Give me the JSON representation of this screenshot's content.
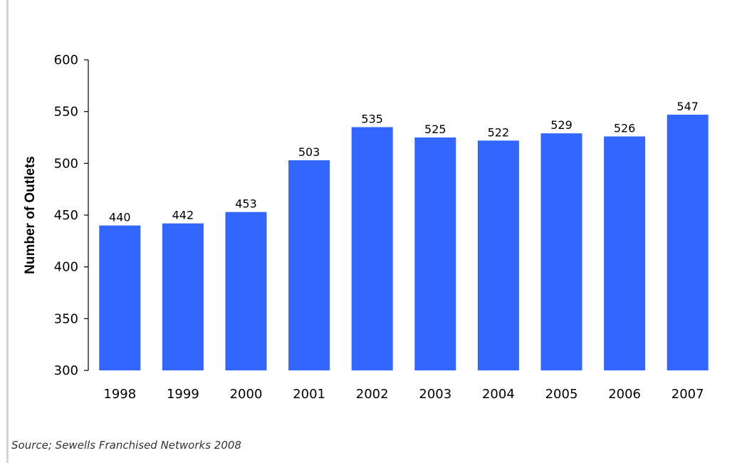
{
  "chart_data": {
    "type": "bar",
    "title": "",
    "xlabel": "",
    "ylabel": "Number of Outlets",
    "categories": [
      "1998",
      "1999",
      "2000",
      "2001",
      "2002",
      "2003",
      "2004",
      "2005",
      "2006",
      "2007"
    ],
    "values": [
      440,
      442,
      453,
      503,
      535,
      525,
      522,
      529,
      526,
      547
    ],
    "ylim": [
      300,
      600
    ],
    "yticks": [
      300,
      350,
      400,
      450,
      500,
      550,
      600
    ],
    "grid": false,
    "legend": "none",
    "data_labels": true,
    "colors": {
      "bar": "#3366FF",
      "axis": "#000000"
    }
  },
  "footer": {
    "source": "Source; Sewells Franchised Networks 2008"
  }
}
